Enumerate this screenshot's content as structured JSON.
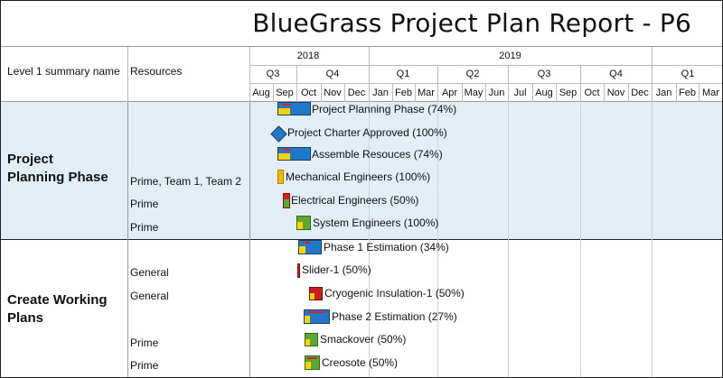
{
  "title": "BlueGrass Project Plan Report - P6",
  "columns": {
    "level1": "Level 1 summary name",
    "resources": "Resources"
  },
  "timeline": {
    "years": [
      "2018",
      "2019"
    ],
    "quarters": [
      "Q3",
      "Q4",
      "Q1",
      "Q2",
      "Q3",
      "Q4",
      "Q1"
    ],
    "months": [
      "Aug",
      "Sep",
      "Oct",
      "Nov",
      "Dec",
      "Jan",
      "Feb",
      "Mar",
      "Apr",
      "May",
      "Jun",
      "Jul",
      "Aug",
      "Sep",
      "Oct",
      "Nov",
      "Dec",
      "Jan",
      "Feb",
      "Mar"
    ]
  },
  "groups": [
    {
      "name_line1": "Project",
      "name_line2": "Planning Phase"
    },
    {
      "name_line1": "Create Working",
      "name_line2": "Plans"
    }
  ],
  "rows": [
    {
      "resource": "",
      "label": "Project Planning Phase (74%)",
      "progress": 0.74,
      "color": "#1f78c8"
    },
    {
      "resource": "",
      "label": "Project Charter Approved (100%)",
      "progress": 1.0,
      "color": "#1f78c8"
    },
    {
      "resource": "",
      "label": "Assemble Resouces (74%)",
      "progress": 0.74,
      "color": "#1f78c8"
    },
    {
      "resource": "Prime, Team 1, Team 2",
      "label": "Mechanical Engineers (100%)",
      "progress": 1.0,
      "color": "#f5b800"
    },
    {
      "resource": "Prime",
      "label": "Electrical Engineers (50%)",
      "progress": 0.5,
      "color": "#e02020"
    },
    {
      "resource": "Prime",
      "label": "System Engineers (100%)",
      "progress": 1.0,
      "color": "#5aa832"
    },
    {
      "resource": "",
      "label": "Phase 1 Estimation (34%)",
      "progress": 0.34,
      "color": "#1f78c8"
    },
    {
      "resource": "General",
      "label": "Slider-1 (50%)",
      "progress": 0.5,
      "color": "#d9232a"
    },
    {
      "resource": "General",
      "label": "Cryogenic Insulation-1 (50%)",
      "progress": 0.5,
      "color": "#c81e1e"
    },
    {
      "resource": "",
      "label": "Phase 2 Estimation (27%)",
      "progress": 0.27,
      "color": "#1f78c8"
    },
    {
      "resource": "Prime",
      "label": "Smackover (50%)",
      "progress": 0.5,
      "color": "#5aa832"
    },
    {
      "resource": "Prime",
      "label": "Creosote (50%)",
      "progress": 0.5,
      "color": "#5aa832"
    }
  ]
}
